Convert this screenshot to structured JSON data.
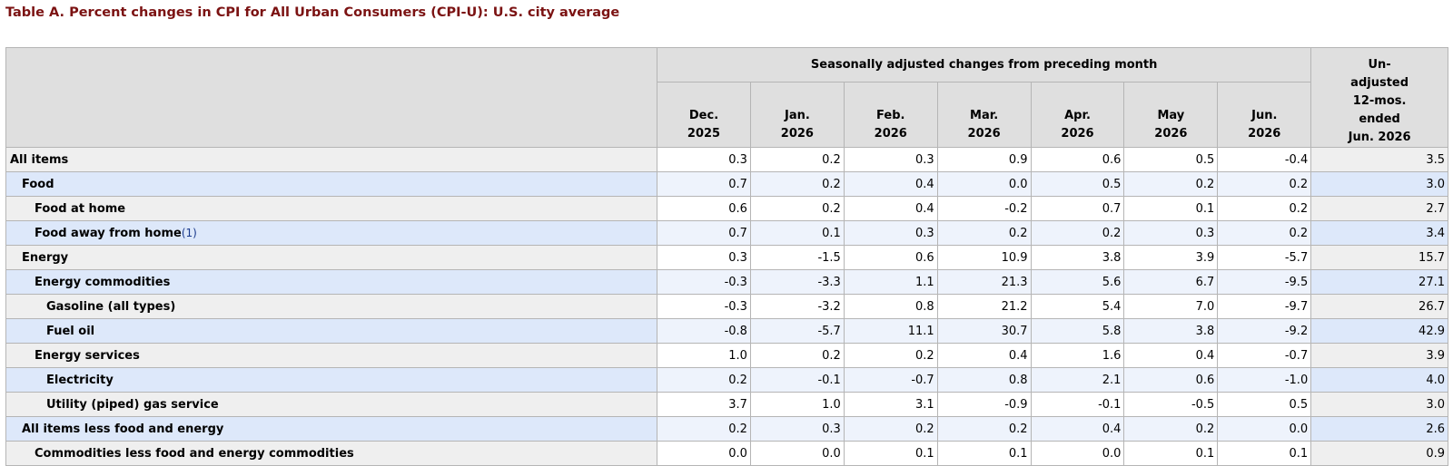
{
  "title": "Table A. Percent changes in CPI for All Urban Consumers (CPI-U): U.S. city average",
  "header": {
    "group_label": "Seasonally adjusted changes from preceding month",
    "months": [
      {
        "month": "Dec.",
        "year": "2025"
      },
      {
        "month": "Jan.",
        "year": "2026"
      },
      {
        "month": "Feb.",
        "year": "2026"
      },
      {
        "month": "Mar.",
        "year": "2026"
      },
      {
        "month": "Apr.",
        "year": "2026"
      },
      {
        "month": "May",
        "year": "2026"
      },
      {
        "month": "Jun.",
        "year": "2026"
      }
    ],
    "unadjusted": [
      "Un-",
      "adjusted",
      "12-mos.",
      "ended",
      "Jun. 2026"
    ]
  },
  "rows": [
    {
      "label": "All items",
      "footnote": "",
      "level": 0,
      "values": [
        "0.3",
        "0.2",
        "0.3",
        "0.9",
        "0.6",
        "0.5",
        "-0.4",
        "3.5"
      ]
    },
    {
      "label": "Food",
      "footnote": "",
      "level": 1,
      "values": [
        "0.7",
        "0.2",
        "0.4",
        "0.0",
        "0.5",
        "0.2",
        "0.2",
        "3.0"
      ]
    },
    {
      "label": "Food at home",
      "footnote": "",
      "level": 2,
      "values": [
        "0.6",
        "0.2",
        "0.4",
        "-0.2",
        "0.7",
        "0.1",
        "0.2",
        "2.7"
      ]
    },
    {
      "label": "Food away from home",
      "footnote": "(1)",
      "level": 2,
      "values": [
        "0.7",
        "0.1",
        "0.3",
        "0.2",
        "0.2",
        "0.3",
        "0.2",
        "3.4"
      ]
    },
    {
      "label": "Energy",
      "footnote": "",
      "level": 1,
      "values": [
        "0.3",
        "-1.5",
        "0.6",
        "10.9",
        "3.8",
        "3.9",
        "-5.7",
        "15.7"
      ]
    },
    {
      "label": "Energy commodities",
      "footnote": "",
      "level": 2,
      "values": [
        "-0.3",
        "-3.3",
        "1.1",
        "21.3",
        "5.6",
        "6.7",
        "-9.5",
        "27.1"
      ]
    },
    {
      "label": "Gasoline (all types)",
      "footnote": "",
      "level": 3,
      "values": [
        "-0.3",
        "-3.2",
        "0.8",
        "21.2",
        "5.4",
        "7.0",
        "-9.7",
        "26.7"
      ]
    },
    {
      "label": "Fuel oil",
      "footnote": "",
      "level": 3,
      "values": [
        "-0.8",
        "-5.7",
        "11.1",
        "30.7",
        "5.8",
        "3.8",
        "-9.2",
        "42.9"
      ]
    },
    {
      "label": "Energy services",
      "footnote": "",
      "level": 2,
      "values": [
        "1.0",
        "0.2",
        "0.2",
        "0.4",
        "1.6",
        "0.4",
        "-0.7",
        "3.9"
      ]
    },
    {
      "label": "Electricity",
      "footnote": "",
      "level": 3,
      "values": [
        "0.2",
        "-0.1",
        "-0.7",
        "0.8",
        "2.1",
        "0.6",
        "-1.0",
        "4.0"
      ]
    },
    {
      "label": "Utility (piped) gas service",
      "footnote": "",
      "level": 3,
      "values": [
        "3.7",
        "1.0",
        "3.1",
        "-0.9",
        "-0.1",
        "-0.5",
        "0.5",
        "3.0"
      ]
    },
    {
      "label": "All items less food and energy",
      "footnote": "",
      "level": 1,
      "values": [
        "0.2",
        "0.3",
        "0.2",
        "0.2",
        "0.4",
        "0.2",
        "0.0",
        "2.6"
      ]
    },
    {
      "label": "Commodities less food and energy commodities",
      "footnote": "",
      "level": 2,
      "values": [
        "0.0",
        "0.0",
        "0.1",
        "0.1",
        "0.0",
        "0.1",
        "0.1",
        "0.9"
      ]
    }
  ]
}
